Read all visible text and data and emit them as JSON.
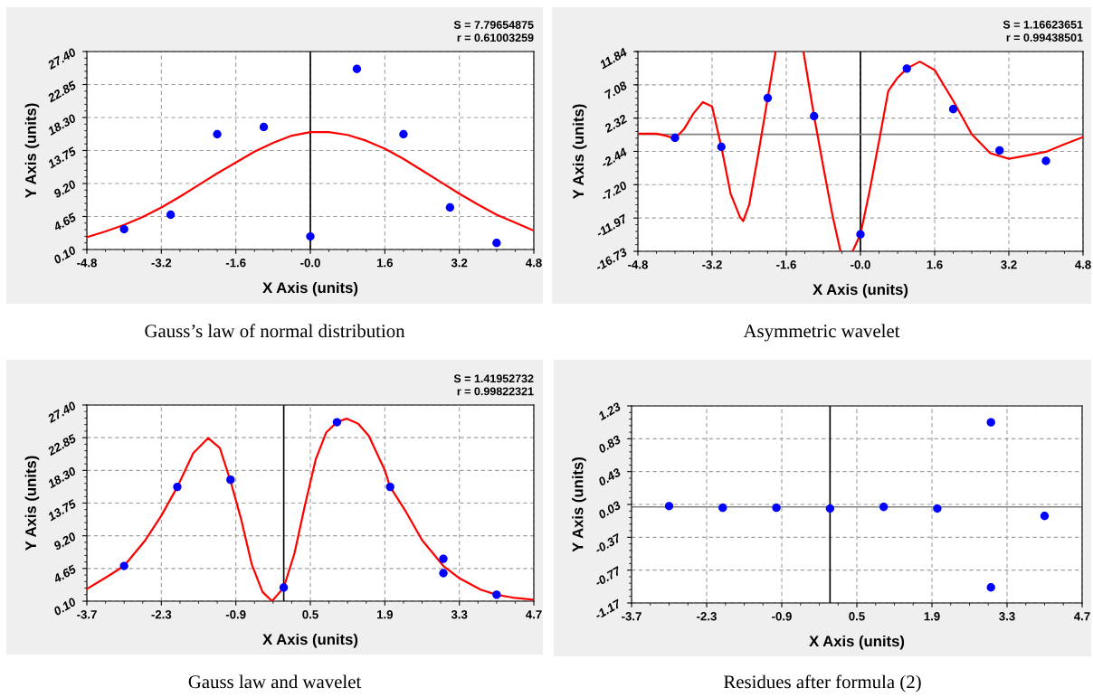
{
  "chart_data": [
    {
      "type": "scatter",
      "title": "Gauss’s law of normal distribution",
      "xlabel": "X Axis (units)",
      "ylabel": "Y Axis (units)",
      "annotations": [
        "S = 7.79654875",
        "r = 0.61003259"
      ],
      "xlim": [
        -4.8,
        4.8
      ],
      "xticks": [
        -4.8,
        -3.2,
        -1.6,
        {
          "value": 0,
          "label": "-0.0"
        },
        1.6,
        3.2,
        4.8
      ],
      "ylim": [
        0.1,
        27.4
      ],
      "yticks": [
        {
          "value": 0.1,
          "label": "0.10"
        },
        4.65,
        {
          "value": 9.2,
          "label": "9.20"
        },
        13.75,
        {
          "value": 18.3,
          "label": "18.30"
        },
        22.85,
        {
          "value": 27.4,
          "label": "27.40"
        }
      ],
      "grid": true,
      "ref_lines": [
        {
          "axis": "x",
          "value": 0,
          "color": "#000000"
        }
      ],
      "series": [
        {
          "type": "line",
          "color": "#ff0000",
          "marker": "none",
          "x": [
            -4.8,
            -4.4,
            -4.0,
            -3.6,
            -3.2,
            -2.8,
            -2.4,
            -2.0,
            -1.6,
            -1.2,
            -0.8,
            -0.4,
            0,
            0.4,
            0.8,
            1.2,
            1.6,
            2.0,
            2.4,
            2.8,
            3.2,
            3.6,
            4.0,
            4.4,
            4.8
          ],
          "values": [
            1.8,
            2.6,
            3.5,
            4.6,
            5.9,
            7.4,
            9.0,
            10.6,
            12.1,
            13.6,
            14.8,
            15.8,
            16.3,
            16.3,
            15.9,
            15.1,
            14.0,
            12.6,
            11.0,
            9.4,
            7.8,
            6.3,
            4.9,
            3.8,
            2.7
          ]
        },
        {
          "type": "scatter",
          "color": "#0000ff",
          "marker": "circle",
          "x": [
            -4,
            -3,
            -2,
            -1,
            0,
            1,
            2,
            3,
            4
          ],
          "values": [
            2.9,
            4.9,
            16.0,
            17.0,
            1.9,
            25.0,
            16.0,
            5.9,
            1.0
          ]
        }
      ]
    },
    {
      "type": "scatter",
      "title": "Asymmetric wavelet",
      "xlabel": "X Axis (units)",
      "ylabel": "Y Axis (units)",
      "annotations": [
        "S = 1.16623651",
        "r = 0.99438501"
      ],
      "xlim": [
        -4.8,
        4.8
      ],
      "xticks": [
        -4.8,
        -3.2,
        -1.6,
        {
          "value": 0,
          "label": "-0.0"
        },
        1.6,
        3.2,
        4.8
      ],
      "ylim": [
        -16.73,
        11.84
      ],
      "yticks": [
        -16.73,
        -11.97,
        {
          "value": -7.2,
          "label": "-7.20"
        },
        -2.44,
        2.32,
        7.08,
        11.84
      ],
      "grid": true,
      "ref_lines": [
        {
          "axis": "x",
          "value": 0,
          "color": "#000000"
        },
        {
          "axis": "y",
          "value": 0,
          "color": "#808080"
        }
      ],
      "series": [
        {
          "type": "line",
          "color": "#ff0000",
          "marker": "none",
          "x": [
            -4.8,
            -4.4,
            -4.2,
            -4.0,
            -3.8,
            -3.6,
            -3.4,
            -3.2,
            -3.0,
            -2.8,
            -2.6,
            -2.53,
            -2.4,
            -2.2,
            -2.0,
            -1.83,
            -1.5,
            -1.23,
            -1.0,
            -0.8,
            -0.6,
            -0.43,
            -0.3,
            -0.17,
            0,
            0.2,
            0.4,
            0.6,
            0.8,
            1.0,
            1.28,
            1.6,
            2.0,
            2.4,
            2.8,
            3.2,
            3.6,
            4.0,
            4.4,
            4.8
          ],
          "values": [
            0.1,
            0.1,
            -0.2,
            -0.6,
            0.8,
            3.0,
            4.6,
            4.0,
            -1.8,
            -8.5,
            -11.8,
            -12.4,
            -10.1,
            -2.7,
            5.2,
            11.84,
            null,
            11.84,
            2.6,
            -4.7,
            -11.7,
            -16.73,
            null,
            -16.73,
            -14.3,
            -8.0,
            -1.0,
            6.2,
            8.1,
            9.4,
            10.4,
            9.2,
            4.8,
            0.0,
            -2.7,
            -3.5,
            -3.0,
            -2.5,
            -1.4,
            -0.4
          ]
        },
        {
          "type": "scatter",
          "color": "#0000ff",
          "marker": "circle",
          "x": [
            -4,
            -3,
            -2,
            -1,
            0,
            1,
            2,
            3,
            4
          ],
          "values": [
            -0.5,
            -1.8,
            5.2,
            2.6,
            -14.3,
            9.4,
            3.6,
            -2.3,
            -3.8
          ]
        }
      ]
    },
    {
      "type": "scatter",
      "title": "Gauss law and wavelet",
      "xlabel": "X Axis (units)",
      "ylabel": "Y Axis (units)",
      "annotations": [
        "S = 1.41952732",
        "r = 0.99822321"
      ],
      "xlim": [
        -3.7,
        4.7
      ],
      "xticks": [
        -3.7,
        -2.3,
        -0.9,
        0.5,
        1.9,
        3.3,
        4.7
      ],
      "ylim": [
        0.1,
        27.4
      ],
      "yticks": [
        {
          "value": 0.1,
          "label": "0.10"
        },
        4.65,
        {
          "value": 9.2,
          "label": "9.20"
        },
        13.75,
        {
          "value": 18.3,
          "label": "18.30"
        },
        22.85,
        {
          "value": 27.4,
          "label": "27.40"
        }
      ],
      "grid": true,
      "ref_lines": [
        {
          "axis": "x",
          "value": 0,
          "color": "#000000"
        }
      ],
      "series": [
        {
          "type": "line",
          "color": "#ff0000",
          "marker": "none",
          "x": [
            -3.7,
            -3.3,
            -3.0,
            -2.6,
            -2.3,
            -2.0,
            -1.7,
            -1.42,
            -1.2,
            -1.0,
            -0.8,
            -0.6,
            -0.4,
            -0.22,
            0,
            0.2,
            0.4,
            0.6,
            0.8,
            1.0,
            1.18,
            1.4,
            1.6,
            1.9,
            2.0,
            2.3,
            2.6,
            3.0,
            3.3,
            3.7,
            4.0,
            4.3,
            4.7
          ],
          "values": [
            1.8,
            3.6,
            5.0,
            8.6,
            12.0,
            16.0,
            20.7,
            22.8,
            21.4,
            16.8,
            11.5,
            5.2,
            1.4,
            0.1,
            2.0,
            6.7,
            13.5,
            19.8,
            23.6,
            25.0,
            25.5,
            24.8,
            23.1,
            18.3,
            16.0,
            12.5,
            8.6,
            5.0,
            3.3,
            1.7,
            1.0,
            0.6,
            0.3
          ]
        },
        {
          "type": "scatter",
          "color": "#0000ff",
          "marker": "circle",
          "x": [
            -3,
            -2,
            -1,
            0,
            1,
            2,
            3,
            3,
            4
          ],
          "values": [
            5.0,
            16.0,
            17.0,
            2.0,
            25.0,
            16.0,
            6.0,
            4.0,
            1.0
          ]
        }
      ]
    },
    {
      "type": "scatter",
      "title": "Residues after formula (2)",
      "xlabel": "X Axis (units)",
      "ylabel": "Y Axis (units)",
      "xlim": [
        -3.7,
        4.7
      ],
      "xticks": [
        -3.7,
        -2.3,
        -0.9,
        0.5,
        1.9,
        3.3,
        4.7
      ],
      "ylim": [
        -1.17,
        1.23
      ],
      "yticks": [
        -1.17,
        -0.77,
        -0.37,
        0.03,
        0.43,
        0.83,
        1.23
      ],
      "grid": true,
      "ref_lines": [
        {
          "axis": "x",
          "value": 0,
          "color": "#000000"
        },
        {
          "axis": "y",
          "value": 0,
          "color": "#808080"
        }
      ],
      "series": [
        {
          "type": "scatter",
          "color": "#0000ff",
          "marker": "circle",
          "x": [
            -3,
            -2,
            -1,
            0,
            1,
            2,
            3,
            3,
            4
          ],
          "values": [
            0.01,
            -0.01,
            -0.01,
            -0.02,
            0.0,
            -0.02,
            1.03,
            -0.98,
            -0.11
          ]
        }
      ]
    }
  ]
}
